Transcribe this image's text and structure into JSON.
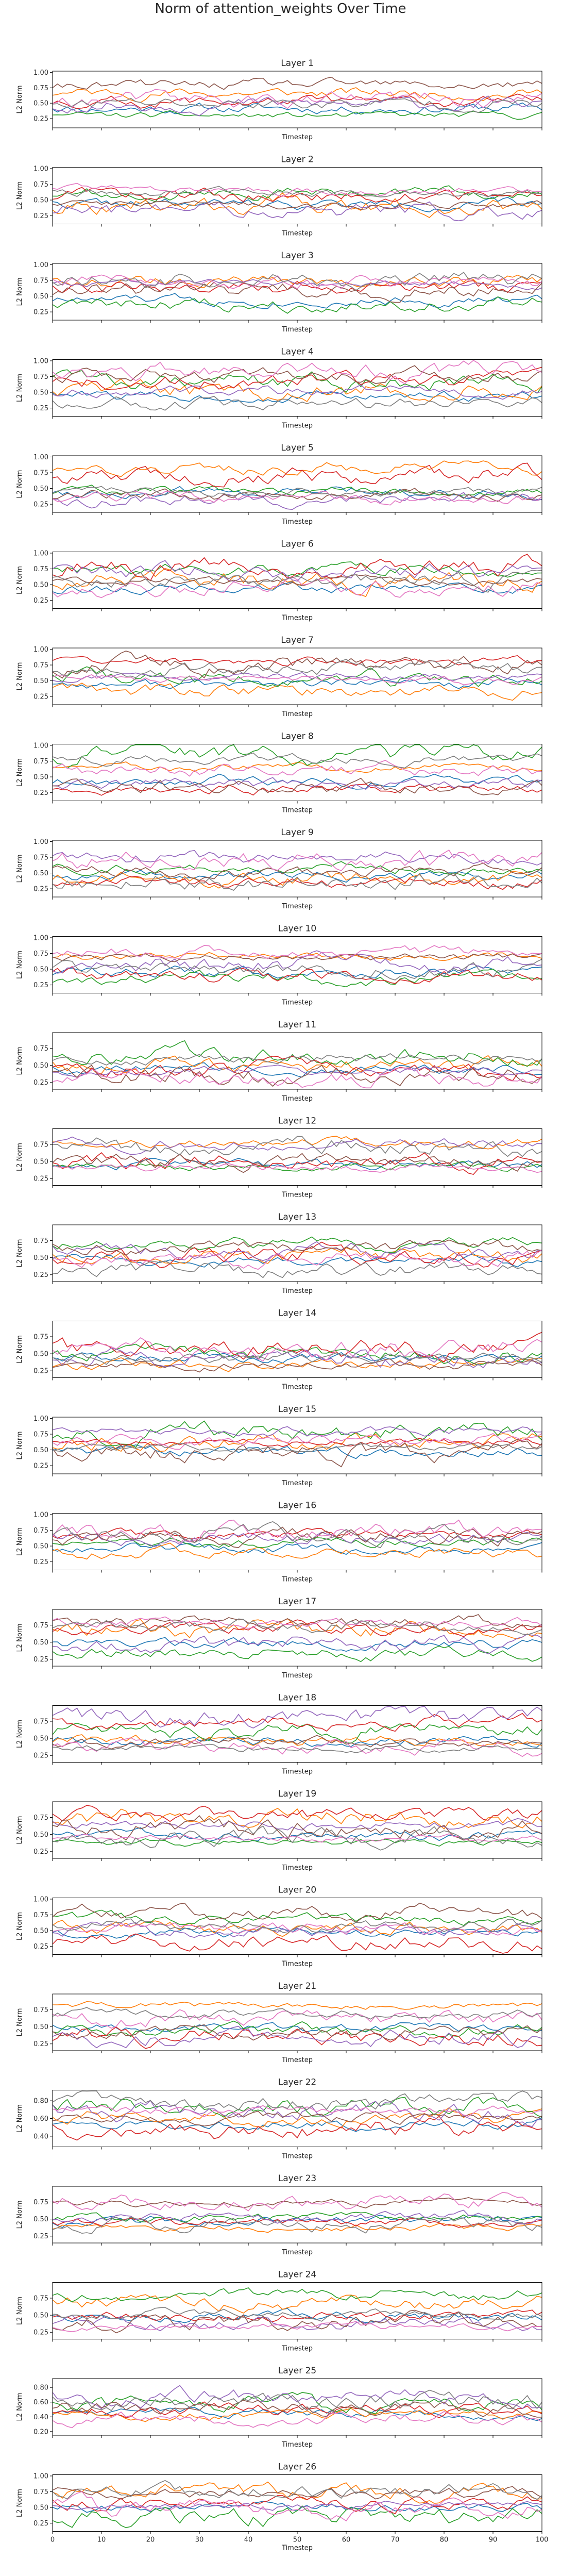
{
  "figure": {
    "title": "Norm of attention_weights Over Time"
  },
  "chart_data": {
    "type": "line",
    "title": "Norm of attention_weights Over Time",
    "xlabel": "Timestep",
    "ylabel": "L2 Norm",
    "xlim": [
      0,
      100
    ],
    "x_ticks": [
      0,
      10,
      20,
      30,
      40,
      50,
      60,
      70,
      80,
      90,
      100
    ],
    "x_tick_labels_shown_on_last_panel_only": true,
    "series_colors": [
      "#1f77b4",
      "#ff7f0e",
      "#2ca02c",
      "#d62728",
      "#9467bd",
      "#8c564b",
      "#e377c2",
      "#7f7f7f"
    ],
    "panels": [
      {
        "title": "Layer 1",
        "yticks": [
          0.25,
          0.5,
          0.75,
          1.0
        ],
        "ylim": [
          0.1,
          1.02
        ],
        "seed": 11
      },
      {
        "title": "Layer 2",
        "yticks": [
          0.25,
          0.5,
          0.75,
          1.0
        ],
        "ylim": [
          0.12,
          1.02
        ],
        "seed": 22
      },
      {
        "title": "Layer 3",
        "yticks": [
          0.25,
          0.5,
          0.75,
          1.0
        ],
        "ylim": [
          0.12,
          1.02
        ],
        "seed": 33
      },
      {
        "title": "Layer 4",
        "yticks": [
          0.25,
          0.5,
          0.75,
          1.0
        ],
        "ylim": [
          0.12,
          1.02
        ],
        "seed": 44
      },
      {
        "title": "Layer 5",
        "yticks": [
          0.25,
          0.5,
          0.75,
          1.0
        ],
        "ylim": [
          0.12,
          1.02
        ],
        "seed": 55
      },
      {
        "title": "Layer 6",
        "yticks": [
          0.25,
          0.5,
          0.75,
          1.0
        ],
        "ylim": [
          0.12,
          1.02
        ],
        "seed": 66
      },
      {
        "title": "Layer 7",
        "yticks": [
          0.25,
          0.5,
          0.75,
          1.0
        ],
        "ylim": [
          0.12,
          1.02
        ],
        "seed": 77
      },
      {
        "title": "Layer 8",
        "yticks": [
          0.25,
          0.5,
          0.75,
          1.0
        ],
        "ylim": [
          0.12,
          1.02
        ],
        "seed": 88
      },
      {
        "title": "Layer 9",
        "yticks": [
          0.25,
          0.5,
          0.75,
          1.0
        ],
        "ylim": [
          0.12,
          1.02
        ],
        "seed": 99
      },
      {
        "title": "Layer 10",
        "yticks": [
          0.25,
          0.5,
          0.75,
          1.0
        ],
        "ylim": [
          0.12,
          1.02
        ],
        "seed": 110
      },
      {
        "title": "Layer 11",
        "yticks": [
          0.25,
          0.5,
          0.75
        ],
        "ylim": [
          0.15,
          0.98
        ],
        "seed": 121
      },
      {
        "title": "Layer 12",
        "yticks": [
          0.25,
          0.5,
          0.75
        ],
        "ylim": [
          0.15,
          0.98
        ],
        "seed": 132
      },
      {
        "title": "Layer 13",
        "yticks": [
          0.25,
          0.5,
          0.75
        ],
        "ylim": [
          0.15,
          0.98
        ],
        "seed": 143
      },
      {
        "title": "Layer 14",
        "yticks": [
          0.25,
          0.5,
          0.75
        ],
        "ylim": [
          0.15,
          0.98
        ],
        "seed": 154
      },
      {
        "title": "Layer 15",
        "yticks": [
          0.25,
          0.5,
          0.75,
          1.0
        ],
        "ylim": [
          0.12,
          1.02
        ],
        "seed": 165
      },
      {
        "title": "Layer 16",
        "yticks": [
          0.25,
          0.5,
          0.75,
          1.0
        ],
        "ylim": [
          0.12,
          1.02
        ],
        "seed": 176
      },
      {
        "title": "Layer 17",
        "yticks": [
          0.25,
          0.5,
          0.75
        ],
        "ylim": [
          0.15,
          0.98
        ],
        "seed": 187
      },
      {
        "title": "Layer 18",
        "yticks": [
          0.25,
          0.5,
          0.75
        ],
        "ylim": [
          0.15,
          0.98
        ],
        "seed": 198
      },
      {
        "title": "Layer 19",
        "yticks": [
          0.25,
          0.5,
          0.75
        ],
        "ylim": [
          0.15,
          0.98
        ],
        "seed": 209
      },
      {
        "title": "Layer 20",
        "yticks": [
          0.25,
          0.5,
          0.75,
          1.0
        ],
        "ylim": [
          0.12,
          1.02
        ],
        "seed": 220
      },
      {
        "title": "Layer 21",
        "yticks": [
          0.25,
          0.5,
          0.75
        ],
        "ylim": [
          0.15,
          0.98
        ],
        "seed": 231
      },
      {
        "title": "Layer 22",
        "yticks": [
          0.4,
          0.6,
          0.8
        ],
        "ylim": [
          0.28,
          0.92
        ],
        "seed": 242
      },
      {
        "title": "Layer 23",
        "yticks": [
          0.25,
          0.5,
          0.75
        ],
        "ylim": [
          0.15,
          0.98
        ],
        "seed": 253
      },
      {
        "title": "Layer 24",
        "yticks": [
          0.25,
          0.5,
          0.75
        ],
        "ylim": [
          0.15,
          0.98
        ],
        "seed": 264
      },
      {
        "title": "Layer 25",
        "yticks": [
          0.2,
          0.4,
          0.6,
          0.8
        ],
        "ylim": [
          0.15,
          0.92
        ],
        "seed": 275
      },
      {
        "title": "Layer 26",
        "yticks": [
          0.25,
          0.5,
          0.75,
          1.0
        ],
        "ylim": [
          0.12,
          1.02
        ],
        "seed": 286
      }
    ],
    "series_per_panel": 8,
    "points_per_series": 101,
    "values_note_omitted": true,
    "grid": false,
    "legend": "none"
  }
}
